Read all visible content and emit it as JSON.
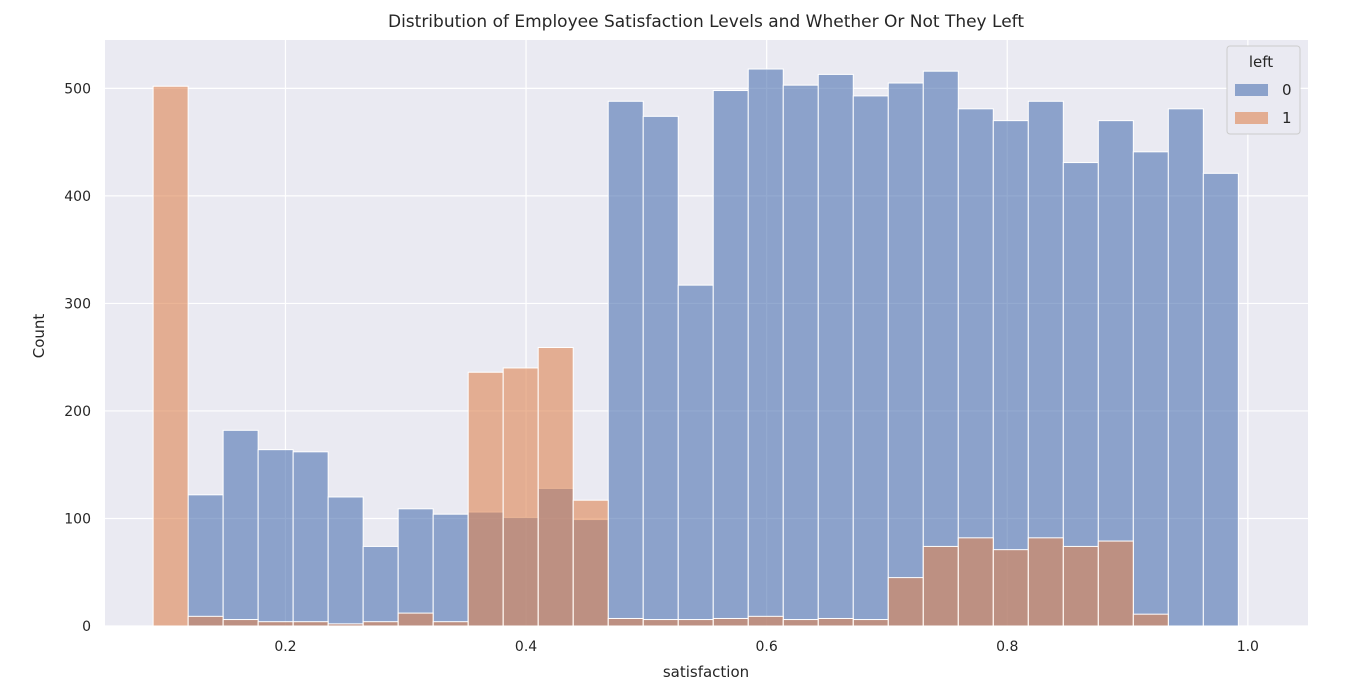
{
  "chart_data": {
    "type": "bar",
    "title": "Distribution of Employee Satisfaction Levels and Whether Or Not They Left",
    "xlabel": "satisfaction",
    "ylabel": "Count",
    "xlim": [
      0.05,
      1.05
    ],
    "ylim": [
      0,
      545
    ],
    "xticks": [
      0.2,
      0.4,
      0.6,
      0.8,
      1.0
    ],
    "xtick_labels": [
      "0.2",
      "0.4",
      "0.6",
      "0.8",
      "1.0"
    ],
    "yticks": [
      0,
      100,
      200,
      300,
      400,
      500
    ],
    "ytick_labels": [
      "0",
      "100",
      "200",
      "300",
      "400",
      "500"
    ],
    "grid": true,
    "legend": {
      "title": "left",
      "placement": "top-right"
    },
    "bin_start": 0.09,
    "bin_width": 0.0291,
    "series": [
      {
        "name": "0",
        "color": "#4c72b0",
        "values": [
          0,
          122,
          182,
          164,
          162,
          120,
          74,
          109,
          104,
          106,
          101,
          128,
          99,
          488,
          474,
          317,
          498,
          518,
          503,
          513,
          493,
          505,
          516,
          481,
          470,
          488,
          431,
          470,
          441,
          481,
          421
        ]
      },
      {
        "name": "1",
        "color": "#dd8452",
        "values": [
          502,
          9,
          6,
          4,
          4,
          2,
          4,
          12,
          4,
          236,
          240,
          259,
          117,
          7,
          6,
          6,
          7,
          9,
          6,
          7,
          6,
          45,
          74,
          82,
          71,
          82,
          74,
          79,
          11,
          0,
          0
        ]
      }
    ]
  }
}
